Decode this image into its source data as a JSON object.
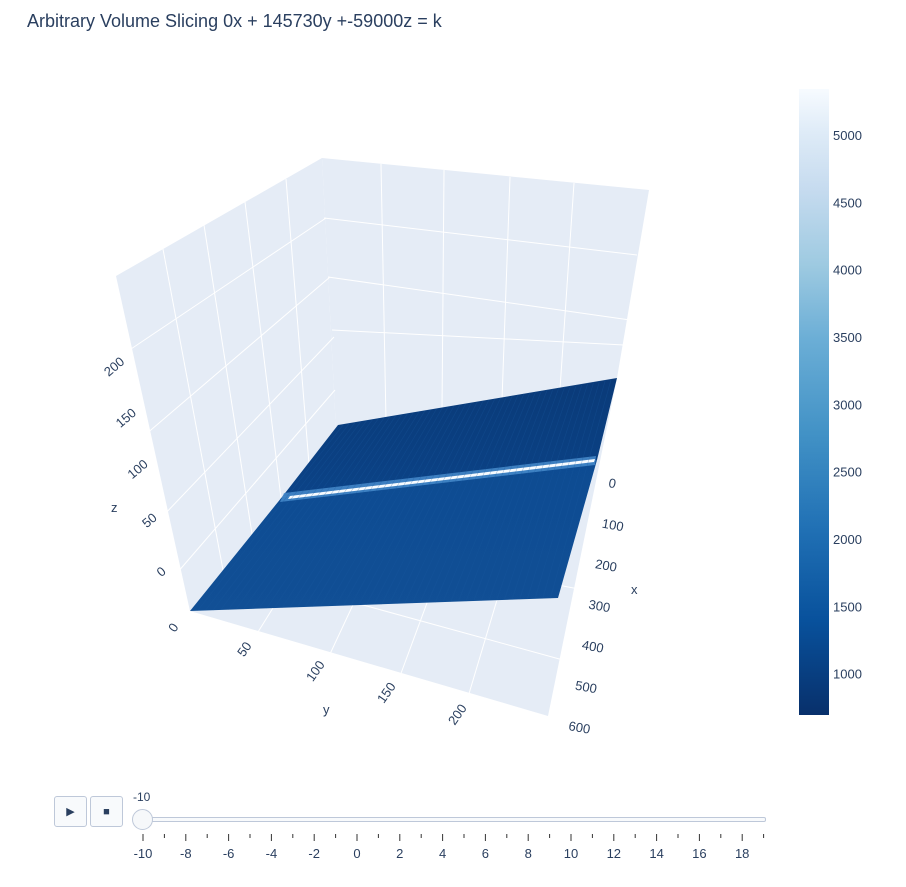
{
  "chart_data": {
    "type": "surface",
    "title": "Arbitrary Volume Slicing 0x + 145730y +-59000z = k",
    "colorscale": "Blues (reversed)",
    "colors": {
      "low": "#08306b",
      "mid": "#2171b5",
      "high": "#f7fbff",
      "scene_bg": "#e5ecf6",
      "grid": "#ffffff",
      "text": "#2a3f5f"
    },
    "axes": {
      "x": {
        "label": "x",
        "ticks": [
          "0",
          "100",
          "200",
          "300",
          "400",
          "500",
          "600"
        ],
        "range": [
          0,
          600
        ]
      },
      "y": {
        "label": "y",
        "ticks": [
          "0",
          "50",
          "100",
          "150",
          "200"
        ],
        "range": [
          0,
          230
        ]
      },
      "z": {
        "label": "z",
        "ticks": [
          "0",
          "50",
          "100",
          "150",
          "200"
        ],
        "range": [
          0,
          230
        ]
      }
    },
    "colorbar": {
      "ticks": [
        "1000",
        "1500",
        "2000",
        "2500",
        "3000",
        "3500",
        "4000",
        "4500",
        "5000"
      ],
      "range": [
        700,
        5350
      ]
    },
    "grid": true
  },
  "slider": {
    "current_value": "-10",
    "ticks": [
      "-10",
      "-8",
      "-6",
      "-4",
      "-2",
      "0",
      "2",
      "4",
      "6",
      "8",
      "10",
      "12",
      "14",
      "16",
      "18"
    ]
  },
  "controls": {
    "play_glyph": "▶",
    "stop_glyph": "■"
  },
  "icons": {
    "play": "play-icon",
    "stop": "stop-icon"
  }
}
